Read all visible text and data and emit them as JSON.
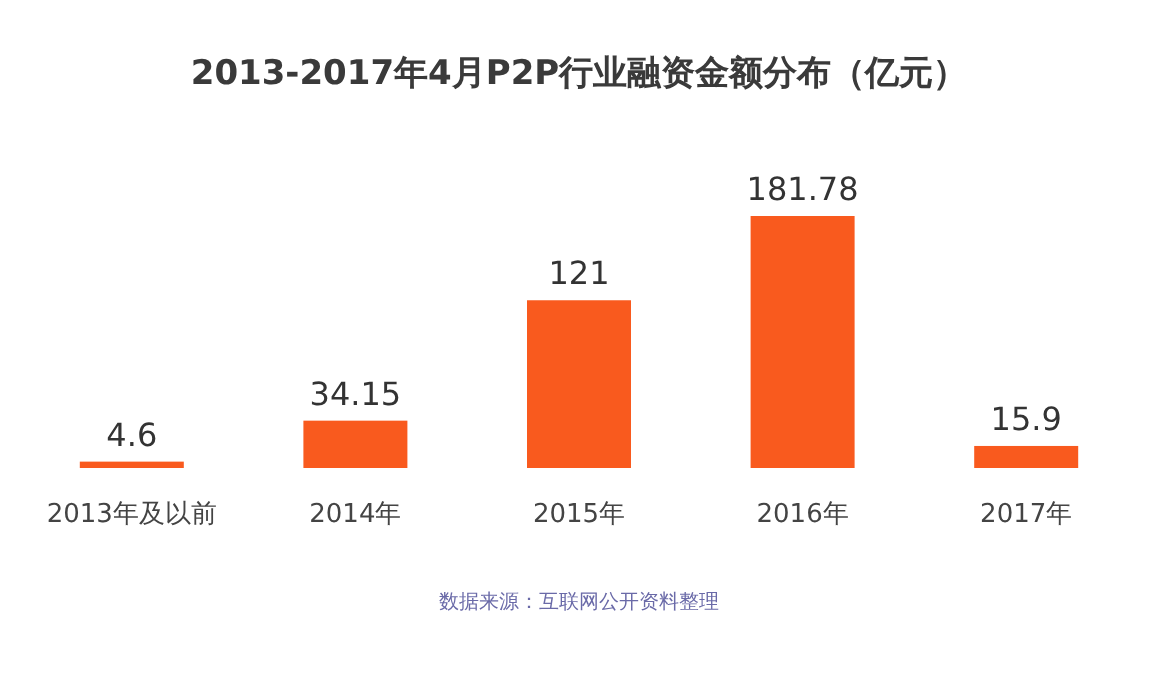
{
  "chart_data": {
    "type": "bar",
    "title": "2013-2017年4月P2P行业融资金额分布（亿元）",
    "categories": [
      "2013年及以前",
      "2014年",
      "2015年",
      "2016年",
      "2017年"
    ],
    "values": [
      4.6,
      34.15,
      121,
      181.78,
      15.9
    ],
    "color": "#f95a1e",
    "data_labels": true,
    "annotations": [
      "数据来源：互联网公开资料整理"
    ]
  }
}
